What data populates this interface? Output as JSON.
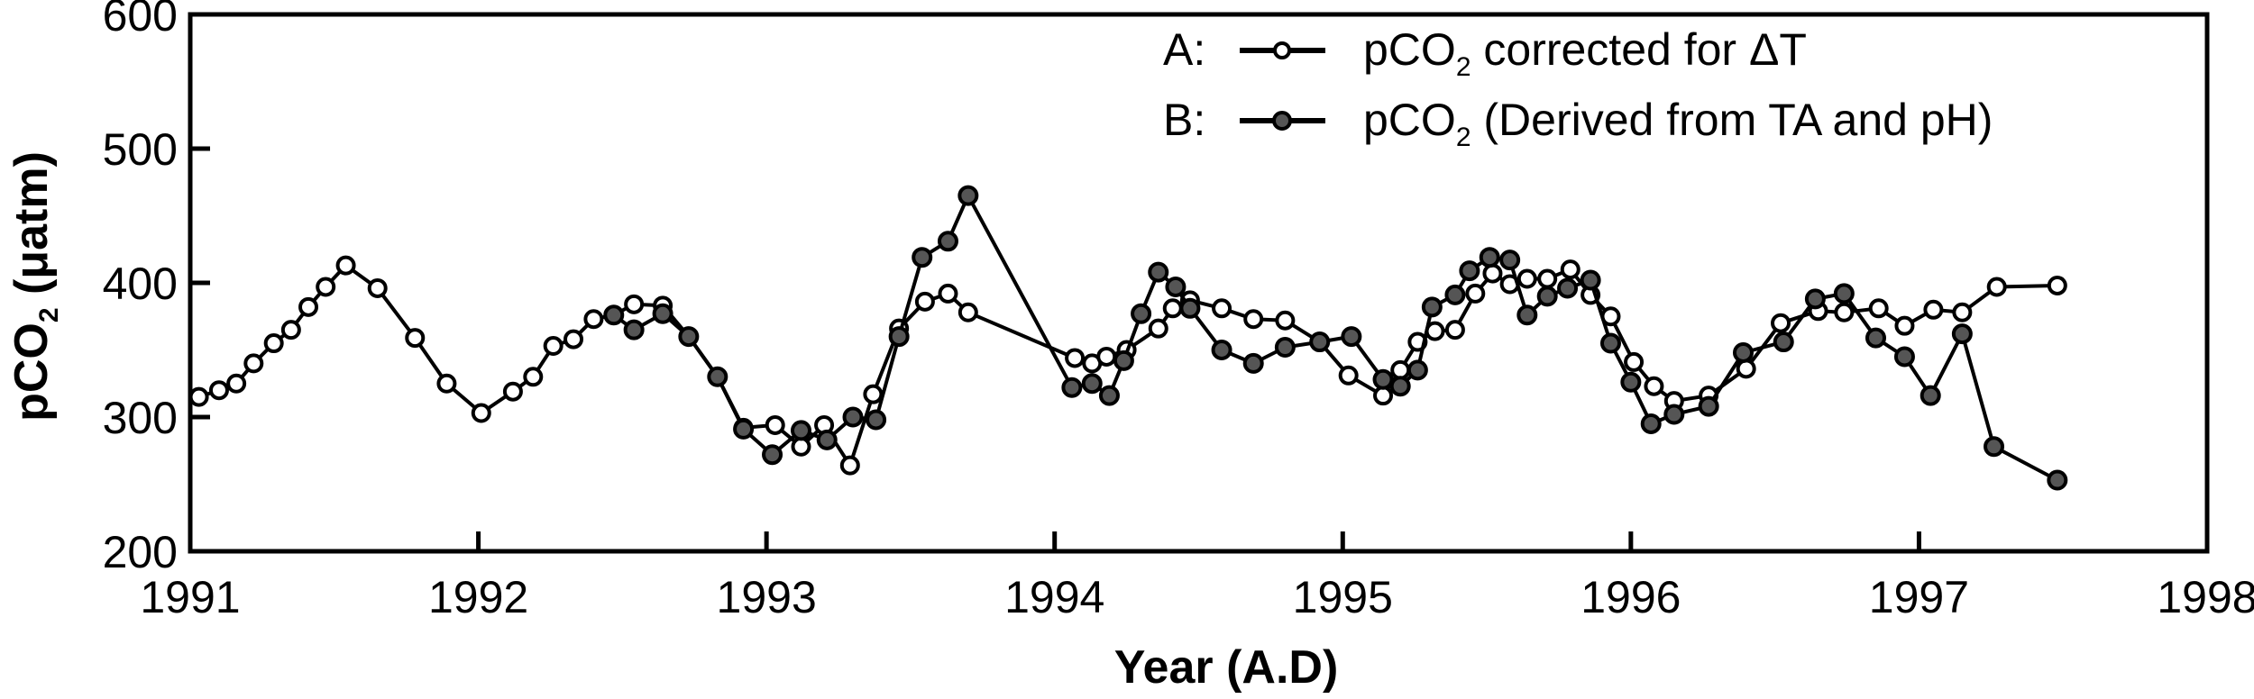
{
  "chart_data": {
    "type": "line",
    "title": "",
    "xlabel": "Year (A.D)",
    "ylabel": "pCO₂ (μatm)",
    "xlim": [
      1991,
      1998
    ],
    "ylim": [
      200,
      600
    ],
    "x_ticks": [
      1991,
      1992,
      1993,
      1994,
      1995,
      1996,
      1997,
      1998
    ],
    "y_ticks": [
      200,
      300,
      400,
      500,
      600
    ],
    "grid": false,
    "legend_position": "top-right",
    "series": [
      {
        "id": "A",
        "name": "pCO₂ corrected for ΔT",
        "legend_prefix": "A:",
        "legend_main": "pCO",
        "legend_sub": "2",
        "legend_rest": " corrected for ΔT",
        "marker": "open-circle",
        "marker_fill": "#ffffff",
        "line_color": "#000000",
        "x": [
          1991.03,
          1991.1,
          1991.16,
          1991.22,
          1991.29,
          1991.35,
          1991.41,
          1991.47,
          1991.54,
          1991.65,
          1991.78,
          1991.89,
          1992.01,
          1992.12,
          1992.19,
          1992.26,
          1992.33,
          1992.4,
          1992.47,
          1992.54,
          1992.64,
          1992.73,
          1992.83,
          1992.92,
          1993.03,
          1993.12,
          1993.2,
          1993.29,
          1993.37,
          1993.46,
          1993.55,
          1993.63,
          1993.7,
          1994.07,
          1994.13,
          1994.18,
          1994.25,
          1994.36,
          1994.41,
          1994.47,
          1994.58,
          1994.69,
          1994.8,
          1994.92,
          1995.02,
          1995.14,
          1995.2,
          1995.26,
          1995.32,
          1995.39,
          1995.46,
          1995.52,
          1995.58,
          1995.64,
          1995.71,
          1995.79,
          1995.86,
          1995.93,
          1996.01,
          1996.08,
          1996.15,
          1996.27,
          1996.4,
          1996.52,
          1996.65,
          1996.74,
          1996.86,
          1996.95,
          1997.05,
          1997.15,
          1997.27,
          1997.48
        ],
        "values": [
          315,
          320,
          325,
          340,
          355,
          365,
          382,
          397,
          413,
          396,
          359,
          325,
          303,
          319,
          330,
          353,
          358,
          373,
          376,
          384,
          383,
          360,
          330,
          292,
          294,
          278,
          294,
          264,
          317,
          366,
          386,
          392,
          378,
          344,
          340,
          345,
          350,
          366,
          381,
          387,
          381,
          373,
          372,
          356,
          331,
          316,
          335,
          356,
          364,
          365,
          392,
          407,
          399,
          403,
          403,
          410,
          391,
          375,
          341,
          323,
          312,
          316,
          336,
          370,
          379,
          378,
          381,
          368,
          380,
          378,
          397,
          398
        ]
      },
      {
        "id": "B",
        "name": "pCO₂ (Derived from TA and pH)",
        "legend_prefix": "B:",
        "legend_main": "pCO",
        "legend_sub": "2",
        "legend_rest": " (Derived from TA and pH)",
        "marker": "filled-circle",
        "marker_fill": "#555555",
        "line_color": "#000000",
        "x": [
          1992.47,
          1992.54,
          1992.64,
          1992.73,
          1992.83,
          1992.92,
          1993.02,
          1993.12,
          1993.21,
          1993.3,
          1993.38,
          1993.46,
          1993.54,
          1993.63,
          1993.7,
          1994.06,
          1994.13,
          1994.19,
          1994.24,
          1994.3,
          1994.36,
          1994.42,
          1994.47,
          1994.58,
          1994.69,
          1994.8,
          1994.92,
          1995.03,
          1995.14,
          1995.2,
          1995.26,
          1995.31,
          1995.39,
          1995.44,
          1995.51,
          1995.58,
          1995.64,
          1995.71,
          1995.78,
          1995.86,
          1995.93,
          1996.0,
          1996.07,
          1996.15,
          1996.27,
          1996.39,
          1996.53,
          1996.64,
          1996.74,
          1996.85,
          1996.95,
          1997.04,
          1997.15,
          1997.26,
          1997.48
        ],
        "values": [
          376,
          365,
          377,
          360,
          330,
          291,
          272,
          290,
          283,
          300,
          298,
          360,
          419,
          431,
          465,
          322,
          325,
          316,
          342,
          377,
          408,
          397,
          381,
          350,
          340,
          352,
          356,
          360,
          328,
          323,
          335,
          382,
          391,
          409,
          419,
          417,
          376,
          390,
          396,
          402,
          355,
          326,
          295,
          302,
          308,
          348,
          356,
          388,
          392,
          359,
          345,
          316,
          362,
          278,
          253
        ]
      }
    ]
  },
  "axes": {
    "x_title": "Year (A.D)",
    "y_title_main": "pCO",
    "y_title_sub": "2",
    "y_title_rest": " (μatm)"
  },
  "legend": {
    "a_prefix": "A:",
    "a_main": "pCO",
    "a_sub": "2",
    "a_rest": " corrected for ΔT",
    "b_prefix": "B:",
    "b_main": "pCO",
    "b_sub": "2",
    "b_rest": " (Derived from TA and pH)"
  }
}
